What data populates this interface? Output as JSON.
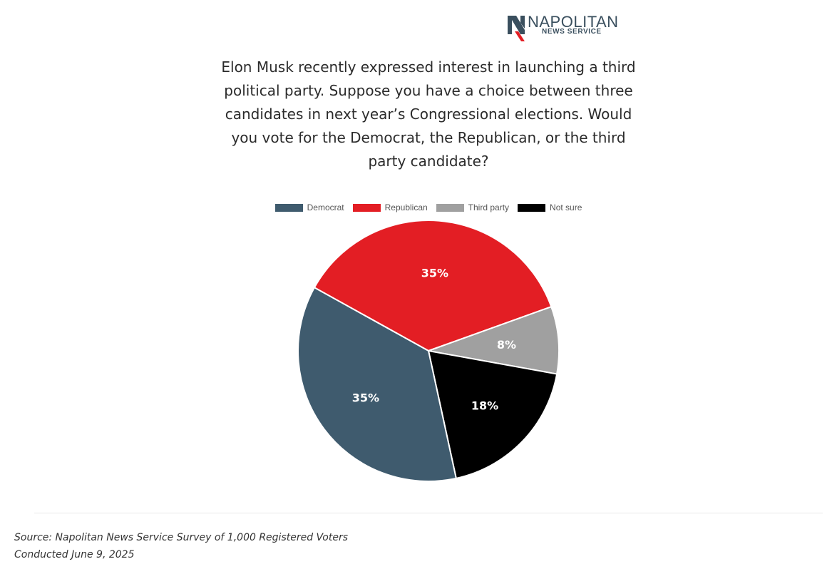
{
  "logo": {
    "brand": "NAPOLITAN",
    "sub": "NEWS SERVICE",
    "icon": "napolitan-n-logo-icon",
    "colors": {
      "navy": "#3a4f5e",
      "red": "#e31e24"
    }
  },
  "question": "Elon Musk recently expressed interest in launching a third political party. Suppose you have a choice between three candidates in next year’s Congressional elections. Would you vote for the Democrat, the Republican, or the third party candidate?",
  "chart_data": {
    "type": "pie",
    "title": "",
    "legend_position": "top",
    "series": [
      {
        "name": "Democrat",
        "value": 35,
        "label": "35%",
        "color": "#3f5b6e"
      },
      {
        "name": "Republican",
        "value": 35,
        "label": "35%",
        "color": "#e31e24"
      },
      {
        "name": "Third party",
        "value": 8,
        "label": "8%",
        "color": "#a0a0a0"
      },
      {
        "name": "Not sure",
        "value": 18,
        "label": "18%",
        "color": "#000000"
      }
    ]
  },
  "footer": {
    "source": "Source: Napolitan News Service Survey of 1,000 Registered Voters",
    "conducted": "Conducted June 9, 2025"
  }
}
